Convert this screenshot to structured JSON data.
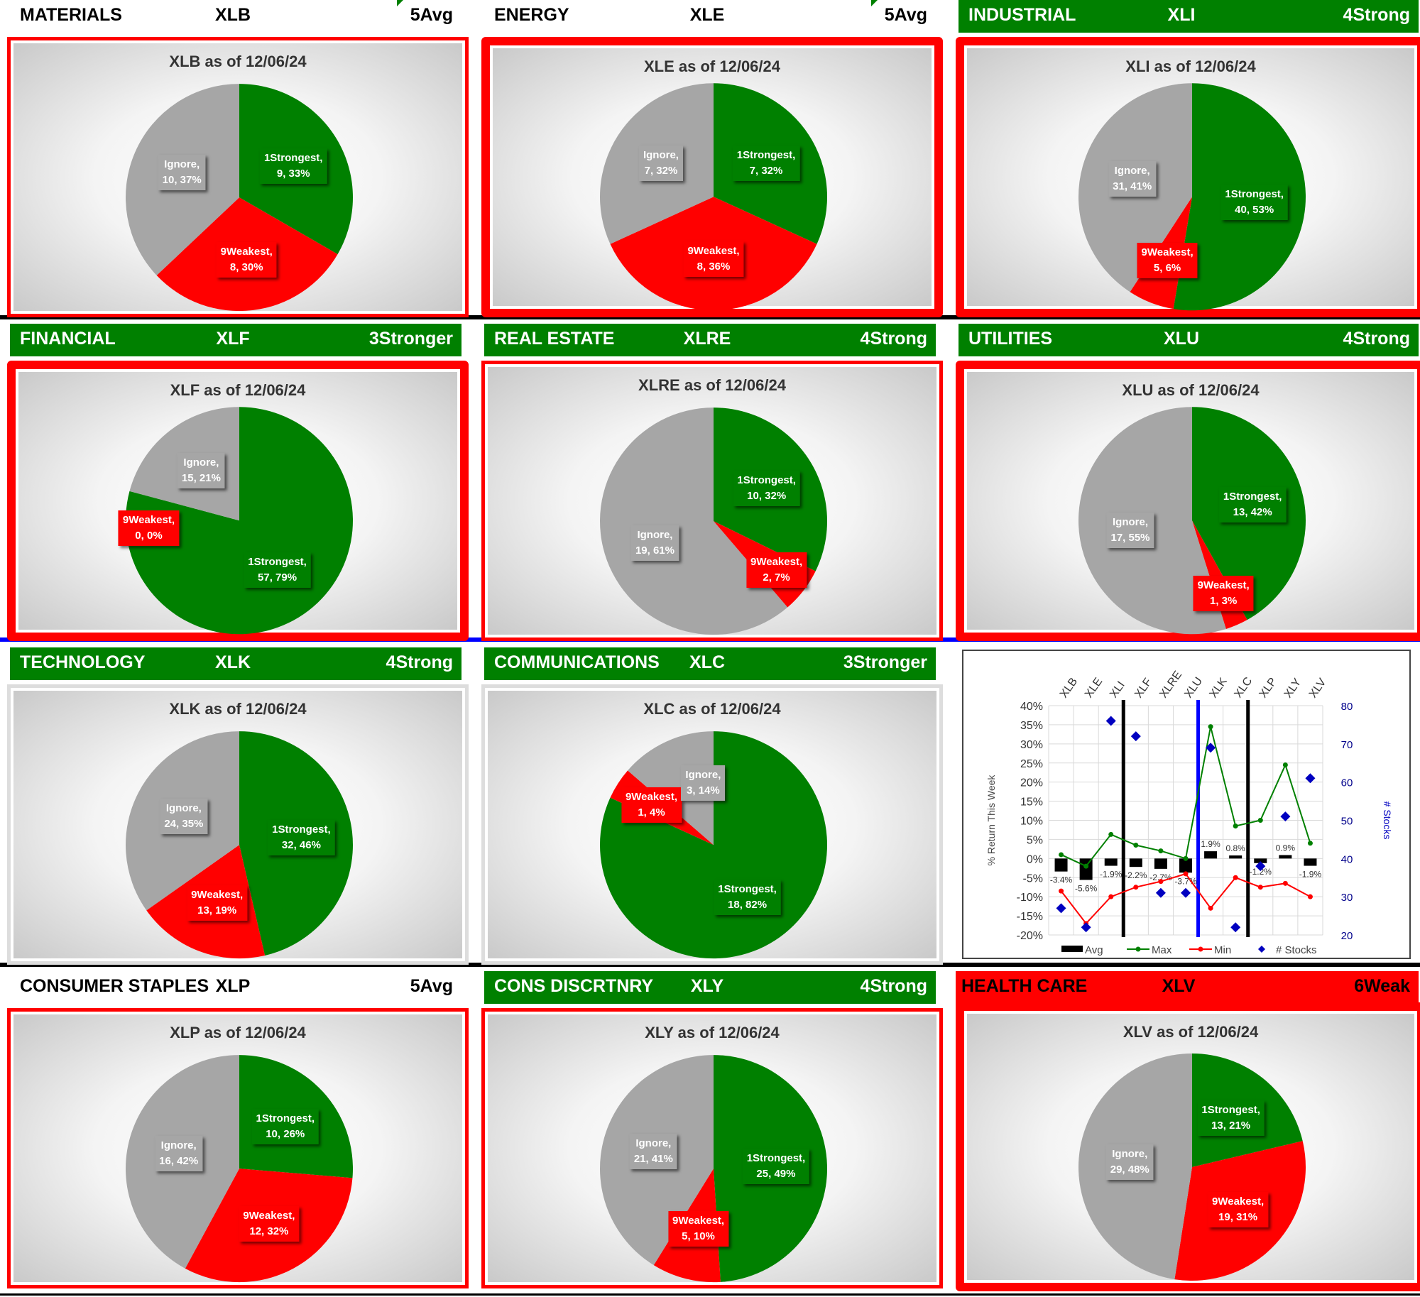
{
  "as_of": "12/06/24",
  "colors": {
    "strongest": "#008000",
    "weakest": "#ff0000",
    "ignore": "#a6a6a6",
    "frame": "#ff0000"
  },
  "panels": [
    {
      "id": "xlb",
      "name": "MATERIALS",
      "ticker": "XLB",
      "rating": "5Avg",
      "title": "XLB as of 12/06/24",
      "slices": [
        {
          "label": "1Strongest,",
          "value": "9, 33%",
          "n": 9
        },
        {
          "label": "9Weakest,",
          "value": "8, 30%",
          "n": 8
        },
        {
          "label": "Ignore,",
          "value": "10, 37%",
          "n": 10
        }
      ]
    },
    {
      "id": "xle",
      "name": "ENERGY",
      "ticker": "XLE",
      "rating": "5Avg",
      "title": "XLE as of 12/06/24",
      "slices": [
        {
          "label": "1Strongest,",
          "value": "7, 32%",
          "n": 7
        },
        {
          "label": "9Weakest,",
          "value": "8, 36%",
          "n": 8
        },
        {
          "label": "Ignore,",
          "value": "7, 32%",
          "n": 7
        }
      ]
    },
    {
      "id": "xli",
      "name": "INDUSTRIAL",
      "ticker": "XLI",
      "rating": "4Strong",
      "title": "XLI as of 12/06/24",
      "slices": [
        {
          "label": "1Strongest,",
          "value": "40, 53%",
          "n": 40
        },
        {
          "label": "9Weakest,",
          "value": "5, 6%",
          "n": 5
        },
        {
          "label": "Ignore,",
          "value": "31, 41%",
          "n": 31
        }
      ]
    },
    {
      "id": "xlf",
      "name": "FINANCIAL",
      "ticker": "XLF",
      "rating": "3Stronger",
      "title": "XLF as of 12/06/24",
      "slices": [
        {
          "label": "1Strongest,",
          "value": "57, 79%",
          "n": 57
        },
        {
          "label": "9Weakest,",
          "value": "0, 0%",
          "n": 0
        },
        {
          "label": "Ignore,",
          "value": "15, 21%",
          "n": 15
        }
      ]
    },
    {
      "id": "xlre",
      "name": "REAL ESTATE",
      "ticker": "XLRE",
      "rating": "4Strong",
      "title": "XLRE as of 12/06/24",
      "slices": [
        {
          "label": "1Strongest,",
          "value": "10, 32%",
          "n": 10
        },
        {
          "label": "9Weakest,",
          "value": "2, 7%",
          "n": 2
        },
        {
          "label": "Ignore,",
          "value": "19, 61%",
          "n": 19
        }
      ]
    },
    {
      "id": "xlu",
      "name": "UTILITIES",
      "ticker": "XLU",
      "rating": "4Strong",
      "title": "XLU as of 12/06/24",
      "slices": [
        {
          "label": "1Strongest,",
          "value": "13, 42%",
          "n": 13
        },
        {
          "label": "9Weakest,",
          "value": "1, 3%",
          "n": 1
        },
        {
          "label": "Ignore,",
          "value": "17, 55%",
          "n": 17
        }
      ]
    },
    {
      "id": "xlk",
      "name": "TECHNOLOGY",
      "ticker": "XLK",
      "rating": "4Strong",
      "title": "XLK as of 12/06/24",
      "slices": [
        {
          "label": "1Strongest,",
          "value": "32, 46%",
          "n": 32
        },
        {
          "label": "9Weakest,",
          "value": "13, 19%",
          "n": 13
        },
        {
          "label": "Ignore,",
          "value": "24, 35%",
          "n": 24
        }
      ]
    },
    {
      "id": "xlc",
      "name": "COMMUNICATIONS",
      "ticker": "XLC",
      "rating": "3Stronger",
      "title": "XLC as of 12/06/24",
      "slices": [
        {
          "label": "1Strongest,",
          "value": "18, 82%",
          "n": 18
        },
        {
          "label": "9Weakest,",
          "value": "1, 4%",
          "n": 1
        },
        {
          "label": "Ignore,",
          "value": "3, 14%",
          "n": 3
        }
      ]
    },
    {
      "id": "xlp",
      "name": "CONSUMER STAPLES",
      "ticker": "XLP",
      "rating": "5Avg",
      "title": "XLP as of 12/06/24",
      "slices": [
        {
          "label": "1Strongest,",
          "value": "10, 26%",
          "n": 10
        },
        {
          "label": "9Weakest,",
          "value": "12, 32%",
          "n": 12
        },
        {
          "label": "Ignore,",
          "value": "16, 42%",
          "n": 16
        }
      ]
    },
    {
      "id": "xly",
      "name": "CONS DISCRTNRY",
      "ticker": "XLY",
      "rating": "4Strong",
      "title": "XLY as of 12/06/24",
      "slices": [
        {
          "label": "1Strongest,",
          "value": "25, 49%",
          "n": 25
        },
        {
          "label": "9Weakest,",
          "value": "5, 10%",
          "n": 5
        },
        {
          "label": "Ignore,",
          "value": "21, 41%",
          "n": 21
        }
      ]
    },
    {
      "id": "xlv",
      "name": "HEALTH CARE",
      "ticker": "XLV",
      "rating": "6Weak",
      "title": "XLV as of 12/06/24",
      "slices": [
        {
          "label": "1Strongest,",
          "value": "13, 21%",
          "n": 13
        },
        {
          "label": "9Weakest,",
          "value": "19, 31%",
          "n": 19
        },
        {
          "label": "Ignore,",
          "value": "29, 48%",
          "n": 29
        }
      ]
    }
  ],
  "chart_data": {
    "type": "combo",
    "categories": [
      "XLB",
      "XLE",
      "XLI",
      "XLF",
      "XLRE",
      "XLU",
      "XLK",
      "XLC",
      "XLP",
      "XLY",
      "XLV"
    ],
    "ylabel": "% Return This Week",
    "y2label": "# Stocks",
    "ylim": [
      -20,
      40
    ],
    "y2lim": [
      20,
      80
    ],
    "yticks": [
      "40%",
      "35%",
      "30%",
      "25%",
      "20%",
      "15%",
      "10%",
      "5%",
      "0%",
      "-5%",
      "-10%",
      "-15%",
      "-20%"
    ],
    "y2ticks": [
      "80",
      "70",
      "60",
      "50",
      "40",
      "30",
      "20"
    ],
    "series": [
      {
        "name": "Avg",
        "type": "bar",
        "values": [
          -3.4,
          -5.6,
          -1.9,
          -2.2,
          -2.7,
          -3.7,
          1.9,
          0.8,
          -1.2,
          0.9,
          -1.9
        ],
        "data_labels": [
          "-3.4%",
          "-5.6%",
          "-1.9%",
          "-2.2%",
          "-2.7%",
          "-3.7%",
          "1.9%",
          "0.8%",
          "-1.2%",
          "0.9%",
          "-1.9%"
        ]
      },
      {
        "name": "Max",
        "type": "line",
        "color": "#008000",
        "values": [
          1,
          -2,
          6.3,
          3.5,
          2,
          0,
          34.5,
          8.5,
          10,
          24.5,
          4
        ]
      },
      {
        "name": "Min",
        "type": "line",
        "color": "#ff0000",
        "values": [
          -8.5,
          -17,
          -10,
          -7.5,
          -6,
          -4,
          -13,
          -5,
          -7.5,
          -6.5,
          -10
        ]
      },
      {
        "name": "# Stocks",
        "type": "scatter",
        "axis": "secondary",
        "color": "#0000c0",
        "values": [
          27,
          22,
          76,
          72,
          31,
          31,
          69,
          22,
          38,
          51,
          61
        ]
      }
    ],
    "vertical_dividers": [
      {
        "between": [
          "XLI",
          "XLF"
        ],
        "color": "#000000"
      },
      {
        "between": [
          "XLU",
          "XLK"
        ],
        "color": "#0000ff"
      },
      {
        "between": [
          "XLC",
          "XLP"
        ],
        "color": "#000000"
      }
    ],
    "legend": [
      "Avg",
      "Max",
      "Min",
      "# Stocks"
    ]
  }
}
